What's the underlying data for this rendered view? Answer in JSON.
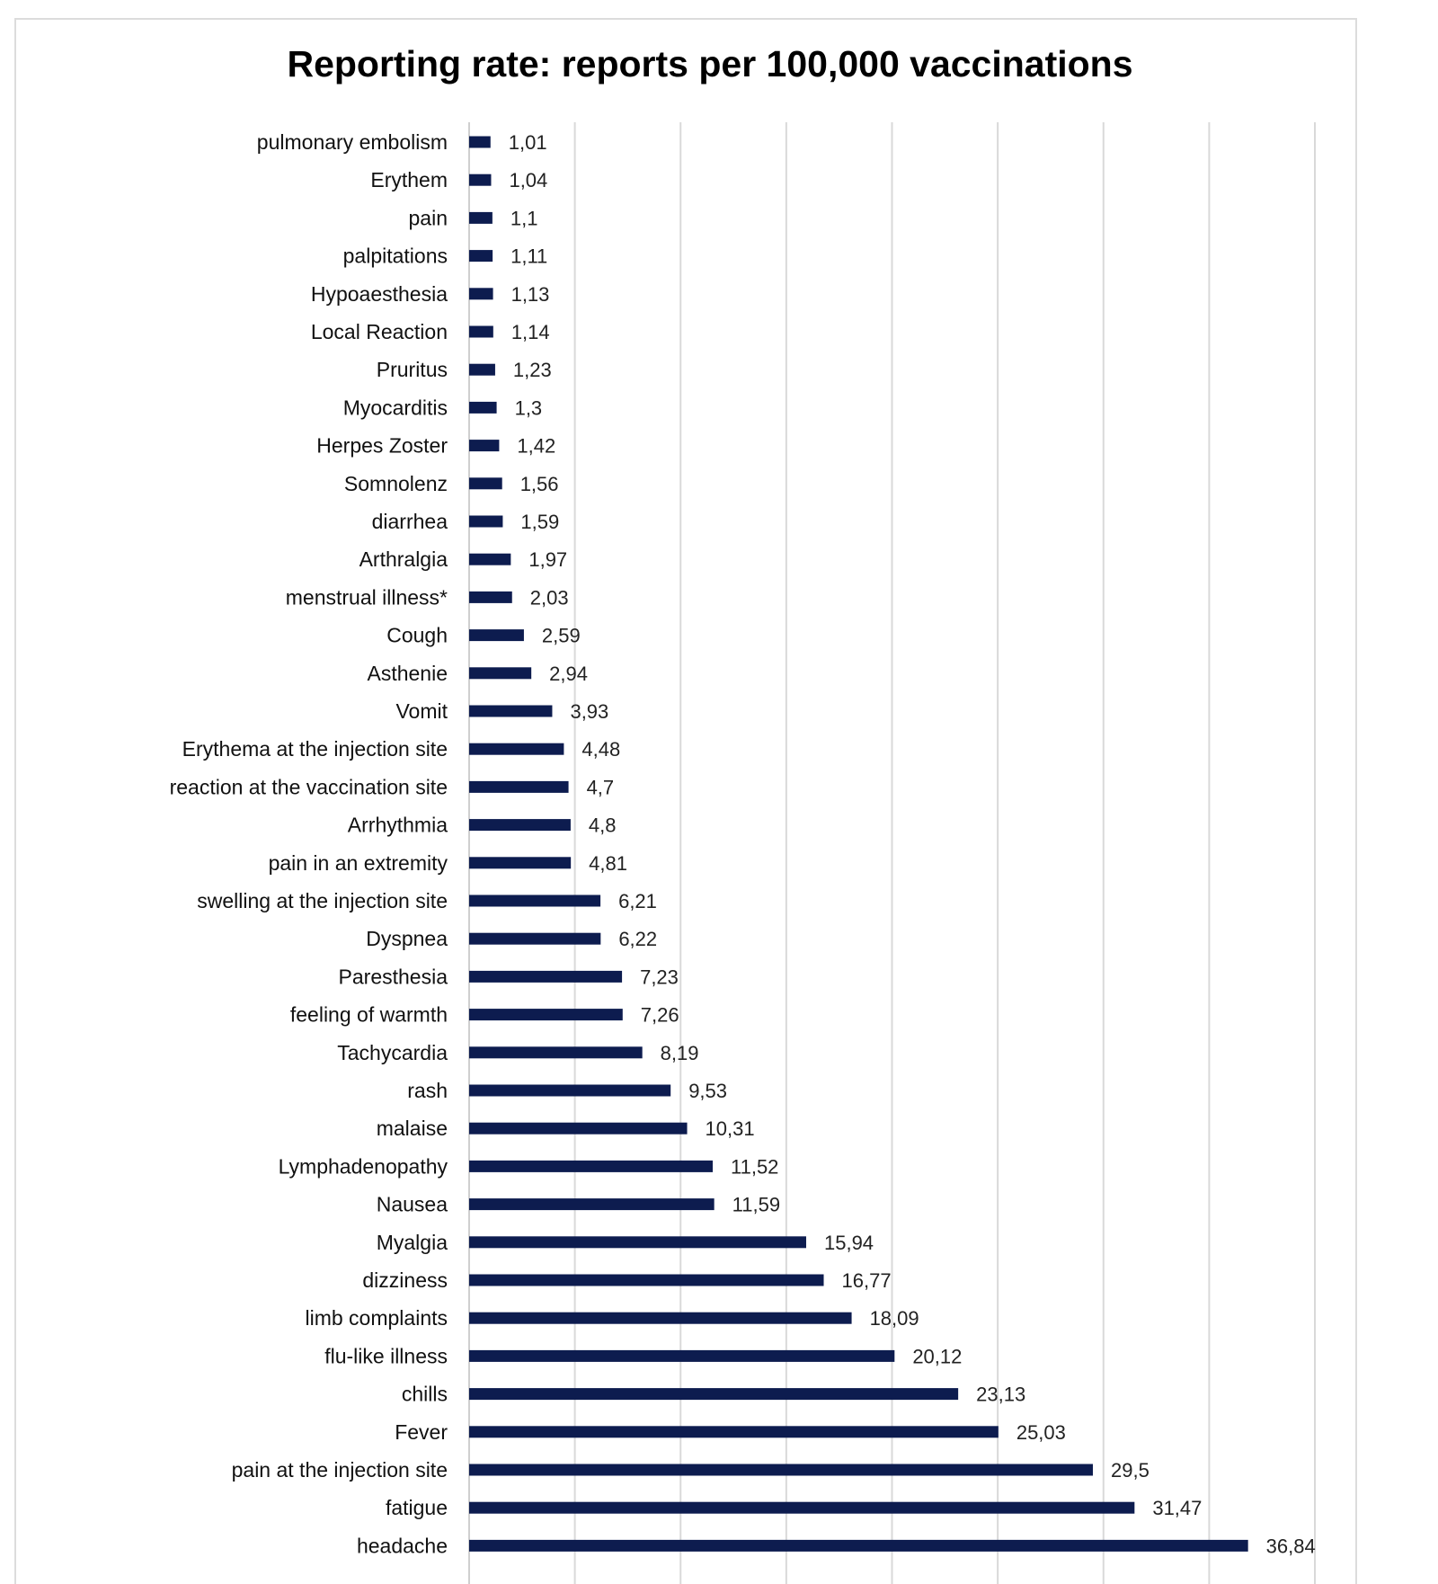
{
  "chart_data": {
    "type": "bar",
    "orientation": "horizontal",
    "title": "Reporting rate: reports per 100,000 vaccinations",
    "xlim": [
      0,
      40
    ],
    "grid": true,
    "bar_color": "#0d1c4f",
    "categories": [
      "pulmonary embolism",
      "Erythem",
      "pain",
      "palpitations",
      "Hypoaesthesia",
      "Local Reaction",
      "Pruritus",
      "Myocarditis",
      "Herpes Zoster",
      "Somnolenz",
      "diarrhea",
      "Arthralgia",
      "menstrual illness*",
      "Cough",
      "Asthenie",
      "Vomit",
      "Erythema at the injection site",
      "reaction at the vaccination site",
      "Arrhythmia",
      "pain in an extremity",
      "swelling at the injection site",
      "Dyspnea",
      "Paresthesia",
      "feeling of warmth",
      "Tachycardia",
      "rash",
      "malaise",
      "Lymphadenopathy",
      "Nausea",
      "Myalgia",
      "dizziness",
      "limb complaints",
      "flu-like illness",
      "chills",
      "Fever",
      "pain at the injection site",
      "fatigue",
      "headache"
    ],
    "values": [
      1.01,
      1.04,
      1.1,
      1.11,
      1.13,
      1.14,
      1.23,
      1.3,
      1.42,
      1.56,
      1.59,
      1.97,
      2.03,
      2.59,
      2.94,
      3.93,
      4.48,
      4.7,
      4.8,
      4.81,
      6.21,
      6.22,
      7.23,
      7.26,
      8.19,
      9.53,
      10.31,
      11.52,
      11.59,
      15.94,
      16.77,
      18.09,
      20.12,
      23.13,
      25.03,
      29.5,
      31.47,
      36.84
    ],
    "value_labels": [
      "1,01",
      "1,04",
      "1,1",
      "1,11",
      "1,13",
      "1,14",
      "1,23",
      "1,3",
      "1,42",
      "1,56",
      "1,59",
      "1,97",
      "2,03",
      "2,59",
      "2,94",
      "3,93",
      "4,48",
      "4,7",
      "4,8",
      "4,81",
      "6,21",
      "6,22",
      "7,23",
      "7,26",
      "8,19",
      "9,53",
      "10,31",
      "11,52",
      "11,59",
      "15,94",
      "16,77",
      "18,09",
      "20,12",
      "23,13",
      "25,03",
      "29,5",
      "31,47",
      "36,84"
    ]
  }
}
